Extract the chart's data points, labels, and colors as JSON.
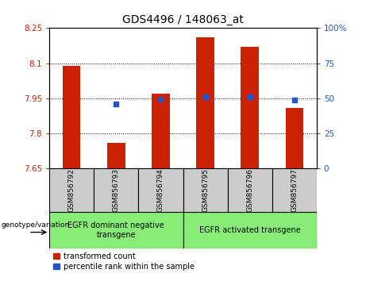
{
  "title": "GDS4496 / 148063_at",
  "categories": [
    "GSM856792",
    "GSM856793",
    "GSM856794",
    "GSM856795",
    "GSM856796",
    "GSM856797"
  ],
  "bar_values": [
    8.09,
    7.76,
    7.97,
    8.21,
    8.17,
    7.91
  ],
  "blue_dot_values": [
    null,
    7.925,
    7.947,
    7.958,
    7.955,
    7.943
  ],
  "ylim_left": [
    7.65,
    8.25
  ],
  "ylim_right": [
    0,
    100
  ],
  "yticks_left": [
    7.65,
    7.8,
    7.95,
    8.1,
    8.25
  ],
  "ytick_labels_left": [
    "7.65",
    "7.8",
    "7.95",
    "8.1",
    "8.25"
  ],
  "yticks_right": [
    0,
    25,
    50,
    75,
    100
  ],
  "ytick_labels_right": [
    "0",
    "25",
    "50",
    "75",
    "100%"
  ],
  "hlines": [
    7.8,
    7.95,
    8.1
  ],
  "bar_color": "#cc2200",
  "dot_color": "#2255cc",
  "bar_bottom": 7.65,
  "group1_label": "EGFR dominant negative\ntransgene",
  "group2_label": "EGFR activated transgene",
  "genotype_label": "genotype/variation",
  "legend_bar_label": "transformed count",
  "legend_dot_label": "percentile rank within the sample",
  "group_bg_color": "#88ee77",
  "tick_color_left": "#cc2200",
  "tick_color_right": "#2255cc",
  "sample_bg_color": "#cccccc",
  "title_fontsize": 10,
  "bar_width": 0.4
}
